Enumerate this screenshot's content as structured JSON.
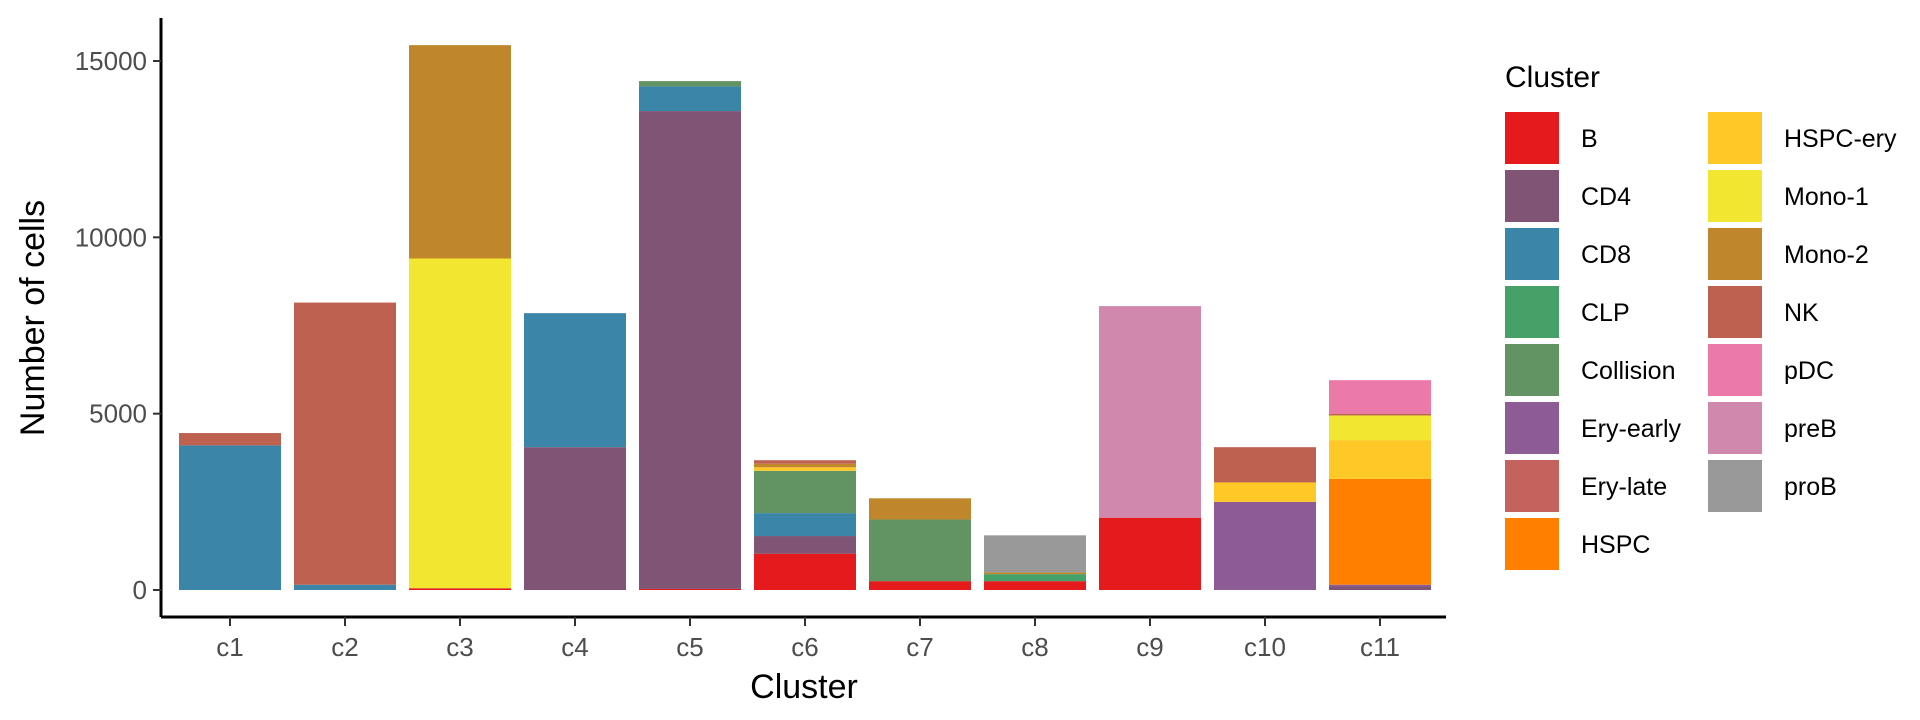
{
  "chart_data": {
    "type": "bar",
    "stacked": true,
    "xlabel": "Cluster",
    "ylabel": "Number of cells",
    "ylim": [
      0,
      16000
    ],
    "yticks": [
      0,
      5000,
      10000,
      15000
    ],
    "categories": [
      "c1",
      "c2",
      "c3",
      "c4",
      "c5",
      "c6",
      "c7",
      "c8",
      "c9",
      "c10",
      "c11"
    ],
    "legend": {
      "title": "Cluster",
      "position": "right",
      "columns": 2
    },
    "grid": false,
    "series": [
      {
        "name": "B",
        "color": "#E41A1C",
        "values": [
          0,
          0,
          50,
          0,
          30,
          1030,
          250,
          250,
          2050,
          0,
          0
        ]
      },
      {
        "name": "CD4",
        "color": "#7F5474",
        "values": [
          0,
          0,
          0,
          4050,
          13550,
          500,
          0,
          0,
          0,
          0,
          100
        ]
      },
      {
        "name": "CD8",
        "color": "#3A85A8",
        "values": [
          4100,
          150,
          0,
          3800,
          700,
          650,
          0,
          0,
          0,
          0,
          0
        ]
      },
      {
        "name": "CLP",
        "color": "#46A169",
        "values": [
          0,
          0,
          0,
          0,
          0,
          0,
          0,
          200,
          0,
          0,
          0
        ]
      },
      {
        "name": "Collision",
        "color": "#629363",
        "values": [
          0,
          0,
          0,
          0,
          150,
          1200,
          1750,
          0,
          0,
          0,
          0
        ]
      },
      {
        "name": "Ery-early",
        "color": "#8D5B96",
        "values": [
          0,
          0,
          0,
          0,
          0,
          0,
          0,
          0,
          0,
          2500,
          50
        ]
      },
      {
        "name": "Ery-late",
        "color": "#C4625D",
        "values": [
          0,
          0,
          0,
          0,
          0,
          0,
          0,
          0,
          0,
          0,
          0
        ]
      },
      {
        "name": "HSPC",
        "color": "#FF7F00",
        "values": [
          0,
          0,
          0,
          0,
          0,
          0,
          0,
          0,
          0,
          0,
          3000
        ]
      },
      {
        "name": "HSPC-ery",
        "color": "#FEC827",
        "values": [
          0,
          0,
          0,
          0,
          0,
          100,
          0,
          0,
          0,
          550,
          1100
        ]
      },
      {
        "name": "Mono-1",
        "color": "#F2E631",
        "values": [
          0,
          0,
          9350,
          0,
          0,
          0,
          0,
          0,
          0,
          0,
          700
        ]
      },
      {
        "name": "Mono-2",
        "color": "#BF862B",
        "values": [
          0,
          0,
          6050,
          0,
          0,
          100,
          600,
          50,
          0,
          0,
          0
        ]
      },
      {
        "name": "NK",
        "color": "#BF6150",
        "values": [
          350,
          8000,
          0,
          0,
          0,
          100,
          0,
          0,
          0,
          1000,
          50
        ]
      },
      {
        "name": "pDC",
        "color": "#EB7AA9",
        "values": [
          0,
          0,
          0,
          0,
          0,
          0,
          0,
          0,
          0,
          0,
          950
        ]
      },
      {
        "name": "preB",
        "color": "#D088AC",
        "values": [
          0,
          0,
          0,
          0,
          0,
          0,
          0,
          0,
          6000,
          0,
          0
        ]
      },
      {
        "name": "proB",
        "color": "#999999",
        "values": [
          0,
          0,
          0,
          0,
          0,
          0,
          0,
          1050,
          0,
          0,
          0
        ]
      }
    ]
  }
}
